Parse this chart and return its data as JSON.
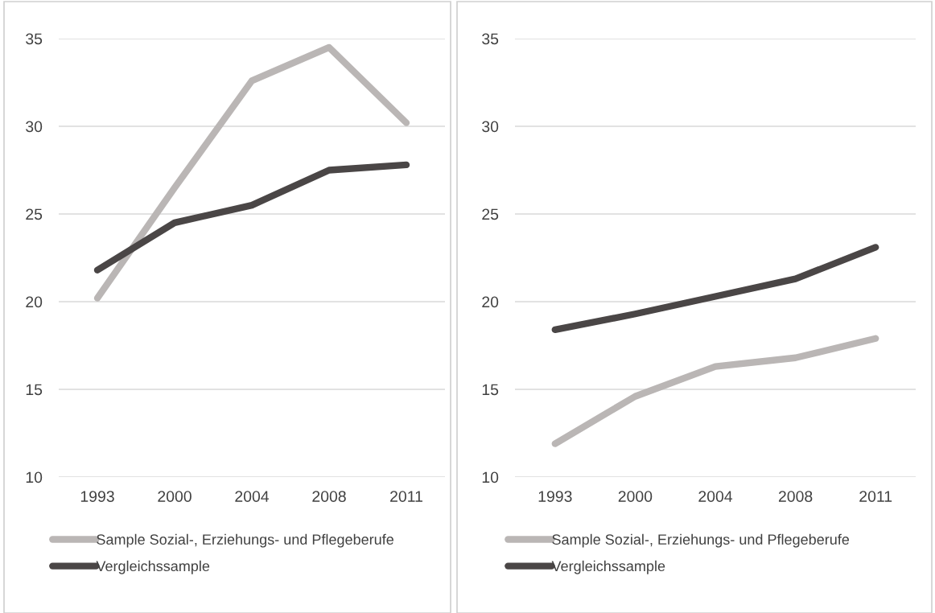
{
  "chart_data": [
    {
      "type": "line",
      "categories": [
        "1993",
        "2000",
        "2004",
        "2008",
        "2011"
      ],
      "ylim": [
        10,
        35
      ],
      "yticks": [
        10,
        15,
        20,
        25,
        30,
        35
      ],
      "grid": "y",
      "legend": "bottom",
      "series": [
        {
          "name": "Sample Sozial-, Erziehungs- und Pflegeberufe",
          "color": "#bab6b5",
          "values": [
            20.2,
            26.5,
            32.6,
            34.5,
            30.2
          ]
        },
        {
          "name": "Vergleichssample",
          "color": "#4a4646",
          "values": [
            21.8,
            24.5,
            25.5,
            27.5,
            27.8
          ]
        }
      ]
    },
    {
      "type": "line",
      "categories": [
        "1993",
        "2000",
        "2004",
        "2008",
        "2011"
      ],
      "ylim": [
        10,
        35
      ],
      "yticks": [
        10,
        15,
        20,
        25,
        30,
        35
      ],
      "grid": "y",
      "legend": "bottom",
      "series": [
        {
          "name": "Sample Sozial-, Erziehungs- und Pflegeberufe",
          "color": "#bab6b5",
          "values": [
            11.9,
            14.6,
            16.3,
            16.8,
            17.9
          ]
        },
        {
          "name": "Vergleichssample",
          "color": "#4a4646",
          "values": [
            18.4,
            19.3,
            20.3,
            21.3,
            23.1
          ]
        }
      ]
    }
  ]
}
